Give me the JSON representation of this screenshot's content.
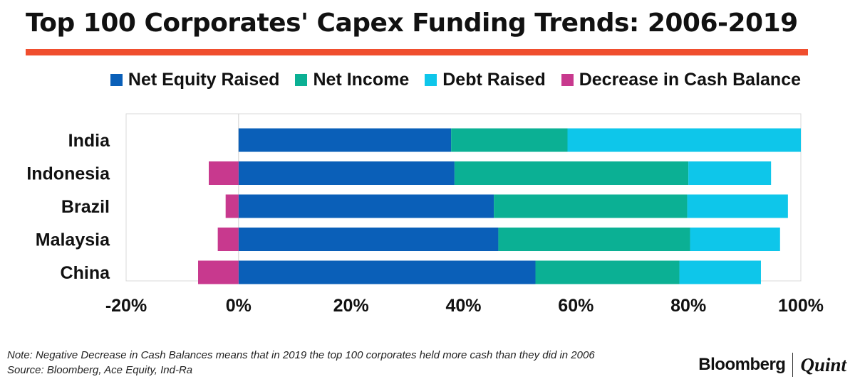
{
  "header": {
    "title": "Top 100 Corporates' Capex Funding Trends: 2006-2019",
    "rule_color": "#f04e2e"
  },
  "chart_data": {
    "type": "bar",
    "orientation": "horizontal",
    "stacked": true,
    "title": "Top 100 Corporates' Capex Funding Trends: 2006-2019",
    "categories": [
      "India",
      "Indonesia",
      "Brazil",
      "Malaysia",
      "China"
    ],
    "series": [
      {
        "name": "Net Equity Raised",
        "color": "#0a5fb8",
        "values": [
          37.8,
          38.4,
          45.4,
          46.2,
          52.8
        ]
      },
      {
        "name": "Net Income",
        "color": "#0bb094",
        "values": [
          20.7,
          41.6,
          34.4,
          34.1,
          25.6
        ]
      },
      {
        "name": "Debt Raised",
        "color": "#0ec6ea",
        "values": [
          41.5,
          14.7,
          17.9,
          16.0,
          14.5
        ]
      },
      {
        "name": "Decrease in Cash Balance",
        "color": "#c8398e",
        "values": [
          0.0,
          -5.3,
          -2.3,
          -3.7,
          -7.2
        ]
      }
    ],
    "xlim": [
      -20,
      100
    ],
    "xticks": [
      -20,
      0,
      20,
      40,
      60,
      80,
      100
    ],
    "xtick_labels": [
      "-20%",
      "0%",
      "20%",
      "40%",
      "60%",
      "80%",
      "100%"
    ],
    "xlabel": "",
    "ylabel": "",
    "legend_position": "top",
    "grid": false
  },
  "footer": {
    "note": "Note: Negative Decrease in Cash Balances means that in 2019 the top 100 corporates held more cash than they did in 2006",
    "source": "Source: Bloomberg, Ace Equity, Ind-Ra",
    "brand_primary": "Bloomberg",
    "brand_secondary": "Quint"
  }
}
